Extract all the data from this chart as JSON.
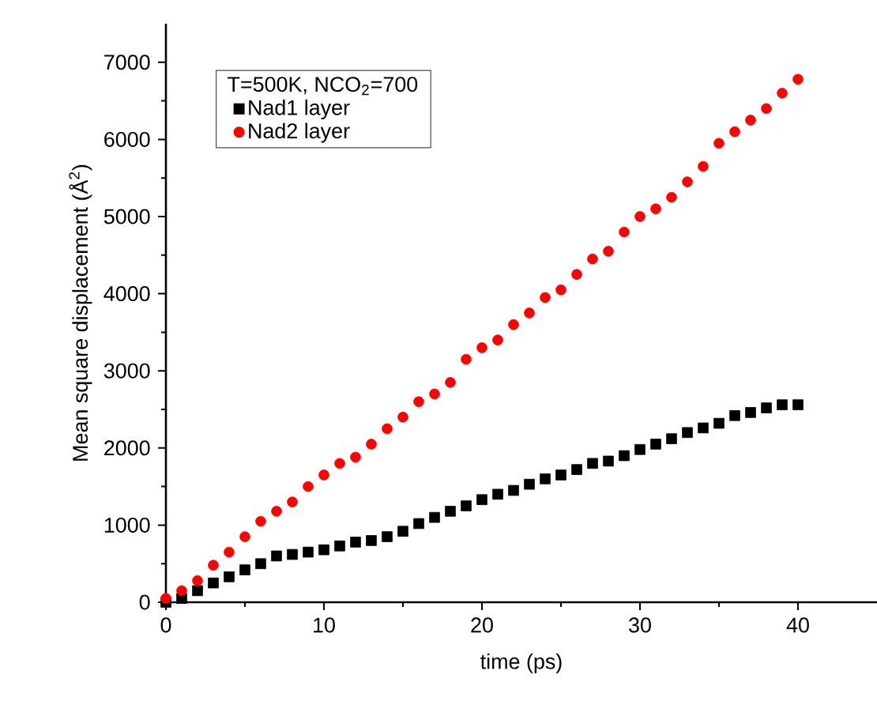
{
  "chart_data": {
    "type": "scatter",
    "xlabel": "time (ps)",
    "ylabel": "Mean square displacement (Å$^{2}$)",
    "legend_title": "T=500K, NCO$_{2}$=700",
    "legend": "top left",
    "xlim": [
      0,
      45
    ],
    "ylim": [
      0,
      7500
    ],
    "xticks": [
      0,
      10,
      20,
      30,
      40
    ],
    "yticks": [
      0,
      1000,
      2000,
      3000,
      4000,
      5000,
      6000,
      7000
    ],
    "x": [
      0,
      1,
      2,
      3,
      4,
      5,
      6,
      7,
      8,
      9,
      10,
      11,
      12,
      13,
      14,
      15,
      16,
      17,
      18,
      19,
      20,
      21,
      22,
      23,
      24,
      25,
      26,
      27,
      28,
      29,
      30,
      31,
      32,
      33,
      34,
      35,
      36,
      37,
      38,
      39,
      40
    ],
    "series": [
      {
        "name": "Nad1 layer",
        "color": "#000000",
        "marker": "square",
        "values": [
          0,
          50,
          150,
          250,
          330,
          420,
          500,
          600,
          620,
          650,
          680,
          730,
          780,
          800,
          850,
          920,
          1020,
          1100,
          1180,
          1250,
          1330,
          1400,
          1450,
          1530,
          1600,
          1650,
          1720,
          1800,
          1830,
          1900,
          1980,
          2050,
          2120,
          2200,
          2260,
          2320,
          2420,
          2460,
          2520,
          2560,
          2560
        ]
      },
      {
        "name": "Nad2 layer",
        "color": "#ff0000",
        "marker": "circle",
        "values": [
          50,
          150,
          280,
          480,
          650,
          850,
          1050,
          1180,
          1300,
          1500,
          1650,
          1800,
          1880,
          2050,
          2250,
          2400,
          2600,
          2700,
          2850,
          3150,
          3300,
          3400,
          3600,
          3750,
          3950,
          4050,
          4250,
          4450,
          4550,
          4800,
          5000,
          5100,
          5250,
          5450,
          5650,
          5950,
          6100,
          6250,
          6400,
          6600,
          6780
        ]
      }
    ]
  }
}
